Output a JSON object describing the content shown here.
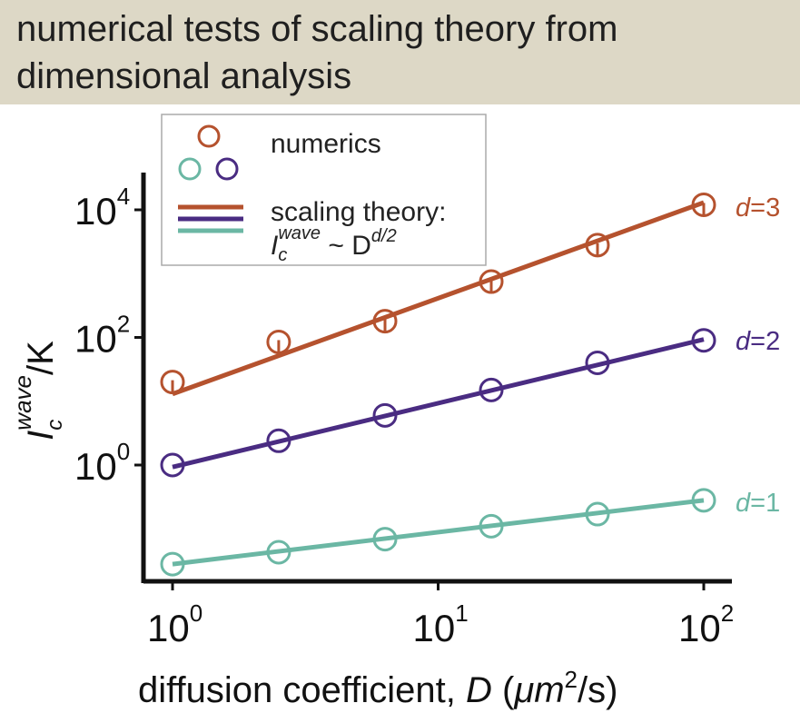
{
  "banner": {
    "title": "numerical tests of scaling theory from dimensional analysis"
  },
  "legend": {
    "numerics_label": "numerics",
    "theory_label": "scaling theory:",
    "theory_formula_base": "I",
    "theory_formula_sub": "c",
    "theory_formula_sup": "wave",
    "theory_formula_rel": " ~ D",
    "theory_formula_exp": "d/2"
  },
  "chart_data": {
    "type": "scatter",
    "title": "",
    "x_scale": "log",
    "y_scale": "log",
    "xlim": [
      0.8,
      125
    ],
    "ylim": [
      0.01,
      40000
    ],
    "xlabel": {
      "text": "diffusion coefficient, ",
      "var": "D",
      "unit_open": " (",
      "unit_mu": "μm",
      "unit_exp": "2",
      "unit_close": "/s)"
    },
    "ylabel": {
      "base": "I",
      "sub": "c",
      "sup": "wave",
      "rest": "/K"
    },
    "x_ticks": [
      {
        "value": 1,
        "base": "10",
        "exp": "0"
      },
      {
        "value": 10,
        "base": "10",
        "exp": "1"
      },
      {
        "value": 100,
        "base": "10",
        "exp": "2"
      }
    ],
    "y_ticks": [
      {
        "value": 1,
        "base": "10",
        "exp": "0"
      },
      {
        "value": 100,
        "base": "10",
        "exp": "2"
      },
      {
        "value": 10000,
        "base": "10",
        "exp": "4"
      }
    ],
    "x": [
      1.0,
      2.51,
      6.31,
      15.85,
      39.81,
      100.0
    ],
    "series": [
      {
        "name": "d=3",
        "color": "#b5522e",
        "numerics": [
          20,
          85,
          180,
          750,
          2800,
          12000
        ],
        "fit": {
          "x": [
            1,
            100
          ],
          "y": [
            13,
            13000
          ]
        }
      },
      {
        "name": "d=2",
        "color": "#4a2c82",
        "numerics": [
          1.0,
          2.4,
          6.0,
          15,
          40,
          90
        ],
        "fit": {
          "x": [
            1,
            100
          ],
          "y": [
            0.93,
            93
          ]
        }
      },
      {
        "name": "d=1",
        "color": "#6bb7a4",
        "numerics": [
          0.028,
          0.043,
          0.069,
          0.11,
          0.17,
          0.28
        ],
        "fit": {
          "x": [
            1,
            100
          ],
          "y": [
            0.028,
            0.28
          ]
        }
      }
    ]
  }
}
